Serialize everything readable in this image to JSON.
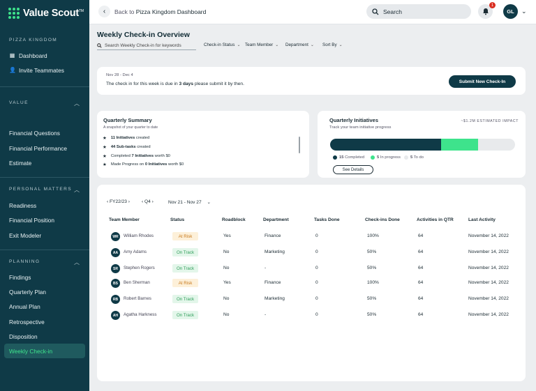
{
  "app": {
    "name": "Value Scout",
    "trademark": "TM"
  },
  "sidebar": {
    "section_pizza": "PIZZA KINGDOM",
    "dashboard": "Dashboard",
    "invite": "Invite Teammates",
    "section_value": "VALUE",
    "financial_questions": "Financial Questions",
    "financial_performance": "Financial Performance",
    "estimate": "Estimate",
    "section_personal": "PERSONAL MATTERS",
    "readiness": "Readiness",
    "financial_position": "Financial Position",
    "exit_modeler": "Exit Modeler",
    "section_planning": "PLANNING",
    "findings": "Findings",
    "quarterly_plan": "Quarterly Plan",
    "annual_plan": "Annual Plan",
    "retrospective": "Retrospective",
    "disposition": "Disposition",
    "weekly_checkin": "Weekly Check-in"
  },
  "topbar": {
    "back_prefix": "Back to ",
    "back_target": "Pizza Kingdom Dashboard",
    "search_label": "Search",
    "notifications": "1",
    "user_initials": "GL"
  },
  "page": {
    "title": "Weekly Check-in Overview",
    "search_placeholder": "Search Weekly Check-in for keywords",
    "filters": {
      "checkin_status": "Check-in Status",
      "team_member": "Team Member",
      "department": "Department",
      "sort_by": "Sort By"
    }
  },
  "due_card": {
    "date_range": "Nov 28 - Dec 4",
    "text_before": "The check in for this week is due in ",
    "days": "3 days",
    "text_after": " please submit it by then.",
    "button": "Submit New Check-In"
  },
  "summary": {
    "title": "Quarterly Summary",
    "subtitle": "A snapshot of your quarter to date",
    "rows": [
      {
        "bold": "11 Initiatives",
        "rest": " created"
      },
      {
        "bold": "44 Sub-tasks",
        "rest": " created"
      },
      {
        "pre": "Completed ",
        "bold": "7 Initiatives",
        "rest": " worth $0"
      },
      {
        "pre": "Made Progress on ",
        "bold": "0 Initiatives",
        "rest": " worth $0"
      }
    ]
  },
  "initiatives": {
    "title": "Quarterly Initiatives",
    "subtitle": "Track your team initiative progress",
    "impact": "~$1.2M ESTIMATED IMPACT",
    "completed_count": "15",
    "completed_label": " Completed",
    "in_progress_count": "5",
    "in_progress_label": " In progress",
    "todo_count": "5",
    "todo_label": " To do",
    "button": "See Details",
    "colors": {
      "completed": "#0f3a47",
      "in_progress": "#3ee38c",
      "todo": "#e8eaec"
    }
  },
  "table": {
    "fy_label": "FY22/23",
    "quarter_label": "Q4",
    "week_label": "Nov 21 - Nov 27",
    "headers": [
      "Team Member",
      "Status",
      "Roadblock",
      "Department",
      "Tasks Done",
      "Check-ins Done",
      "Activities in QTR",
      "Last Activity"
    ],
    "rows": [
      {
        "initials": "WR",
        "name": "William Rhodes",
        "status": "At Risk",
        "roadblock": "Yes",
        "department": "Finance",
        "tasks": "0",
        "checkins": "100%",
        "activities": "64",
        "last": "November 14, 2022"
      },
      {
        "initials": "AA",
        "name": "Amy Adams",
        "status": "On Track",
        "roadblock": "No",
        "department": "Marketing",
        "tasks": "0",
        "checkins": "50%",
        "activities": "64",
        "last": "November 14, 2022"
      },
      {
        "initials": "SR",
        "name": "Stephen Rogers",
        "status": "On Track",
        "roadblock": "No",
        "department": "-",
        "tasks": "0",
        "checkins": "50%",
        "activities": "64",
        "last": "November 14, 2022"
      },
      {
        "initials": "BS",
        "name": "Ben Sherman",
        "status": "At Risk",
        "roadblock": "Yes",
        "department": "Finance",
        "tasks": "0",
        "checkins": "100%",
        "activities": "64",
        "last": "November 14, 2022"
      },
      {
        "initials": "RB",
        "name": "Robert Barnes",
        "status": "On Track",
        "roadblock": "No",
        "department": "Marketing",
        "tasks": "0",
        "checkins": "50%",
        "activities": "64",
        "last": "November 14, 2022"
      },
      {
        "initials": "AH",
        "name": "Agatha Harkness",
        "status": "On Track",
        "roadblock": "No",
        "department": "-",
        "tasks": "0",
        "checkins": "50%",
        "activities": "64",
        "last": "November 14, 2022"
      }
    ]
  }
}
